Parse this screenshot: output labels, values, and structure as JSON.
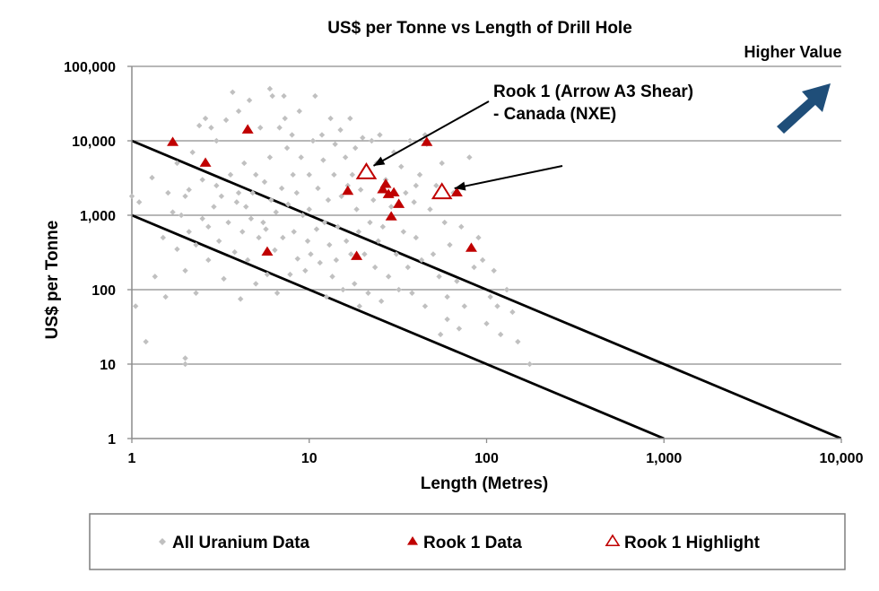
{
  "chart_data": {
    "type": "scatter",
    "title": "US$ per Tonne vs Length of Drill Hole",
    "xlabel": "Length (Metres)",
    "ylabel": "US$ per Tonne",
    "xscale": "log",
    "yscale": "log",
    "xlim": [
      1,
      10000
    ],
    "ylim": [
      1,
      100000
    ],
    "x_ticks": [
      1,
      10,
      100,
      1000,
      10000
    ],
    "x_tick_labels": [
      "1",
      "10",
      "100",
      "1,000",
      "10,000"
    ],
    "y_ticks": [
      1,
      10,
      100,
      1000,
      10000,
      100000
    ],
    "y_tick_labels": [
      "1",
      "10",
      "100",
      "1,000",
      "10,000",
      "100,000"
    ],
    "grid": "horizontal major gridlines",
    "legend_position": "bottom",
    "annotations": {
      "rook_label_line1": "Rook 1 (Arrow A3 Shear)",
      "rook_label_line2": "- Canada (NXE)",
      "higher_value": "Higher Value"
    },
    "reference_lines": [
      {
        "points": [
          [
            1,
            10000
          ],
          [
            10000,
            1
          ]
        ]
      },
      {
        "points": [
          [
            1,
            1000
          ],
          [
            1000,
            1
          ]
        ]
      }
    ],
    "series": [
      {
        "name": "All Uranium Data",
        "marker": "diamond",
        "color": "#c0c0c0",
        "points": [
          [
            1.0,
            1800
          ],
          [
            1.1,
            1500
          ],
          [
            1.05,
            60
          ],
          [
            1.2,
            20
          ],
          [
            1.3,
            3200
          ],
          [
            1.35,
            150
          ],
          [
            1.5,
            500
          ],
          [
            1.55,
            80
          ],
          [
            1.6,
            2000
          ],
          [
            1.7,
            1100
          ],
          [
            1.8,
            5000
          ],
          [
            1.8,
            350
          ],
          [
            1.9,
            1000
          ],
          [
            2.0,
            12
          ],
          [
            2.0,
            10
          ],
          [
            2.0,
            1800
          ],
          [
            2.0,
            180
          ],
          [
            2.1,
            2200
          ],
          [
            2.1,
            600
          ],
          [
            2.2,
            7000
          ],
          [
            2.3,
            400
          ],
          [
            2.3,
            90
          ],
          [
            2.4,
            16000
          ],
          [
            2.5,
            900
          ],
          [
            2.5,
            3000
          ],
          [
            2.6,
            20000
          ],
          [
            2.7,
            700
          ],
          [
            2.7,
            250
          ],
          [
            2.8,
            15000
          ],
          [
            2.9,
            1300
          ],
          [
            3.0,
            2500
          ],
          [
            3.0,
            10000
          ],
          [
            3.1,
            450
          ],
          [
            3.2,
            1800
          ],
          [
            3.3,
            140
          ],
          [
            3.4,
            19000
          ],
          [
            3.5,
            800
          ],
          [
            3.6,
            3500
          ],
          [
            3.7,
            45000
          ],
          [
            3.8,
            320
          ],
          [
            3.9,
            1500
          ],
          [
            4.0,
            2000
          ],
          [
            4.0,
            25000
          ],
          [
            4.1,
            75
          ],
          [
            4.2,
            600
          ],
          [
            4.3,
            5000
          ],
          [
            4.4,
            1300
          ],
          [
            4.5,
            250
          ],
          [
            4.6,
            35000
          ],
          [
            4.7,
            900
          ],
          [
            4.8,
            2000
          ],
          [
            5.0,
            3500
          ],
          [
            5.0,
            120
          ],
          [
            5.2,
            500
          ],
          [
            5.3,
            15000
          ],
          [
            5.5,
            800
          ],
          [
            5.6,
            2800
          ],
          [
            5.7,
            650
          ],
          [
            5.8,
            160
          ],
          [
            6.0,
            50000
          ],
          [
            6.0,
            6000
          ],
          [
            6.1,
            1600
          ],
          [
            6.2,
            40000
          ],
          [
            6.4,
            340
          ],
          [
            6.5,
            1100
          ],
          [
            6.6,
            90
          ],
          [
            6.8,
            15000
          ],
          [
            7.0,
            2300
          ],
          [
            7.1,
            500
          ],
          [
            7.2,
            40000
          ],
          [
            7.3,
            20000
          ],
          [
            7.5,
            8000
          ],
          [
            7.6,
            1400
          ],
          [
            7.8,
            160
          ],
          [
            8.0,
            12000
          ],
          [
            8.1,
            3500
          ],
          [
            8.2,
            600
          ],
          [
            8.5,
            2000
          ],
          [
            8.6,
            260
          ],
          [
            8.8,
            25000
          ],
          [
            9.0,
            6000
          ],
          [
            9.2,
            1000
          ],
          [
            9.5,
            180
          ],
          [
            9.8,
            450
          ],
          [
            10,
            3500
          ],
          [
            10,
            1200
          ],
          [
            10.2,
            300
          ],
          [
            10.5,
            10000
          ],
          [
            10.8,
            40000
          ],
          [
            11,
            650
          ],
          [
            11.2,
            2300
          ],
          [
            11.5,
            230
          ],
          [
            11.8,
            12000
          ],
          [
            12,
            5500
          ],
          [
            12.2,
            800
          ],
          [
            12.5,
            80
          ],
          [
            12.8,
            1600
          ],
          [
            13,
            400
          ],
          [
            13.2,
            20000
          ],
          [
            13.5,
            150
          ],
          [
            13.8,
            3500
          ],
          [
            14,
            9000
          ],
          [
            14.2,
            250
          ],
          [
            14.5,
            700
          ],
          [
            15,
            14000
          ],
          [
            15.2,
            1800
          ],
          [
            15.5,
            100
          ],
          [
            16,
            6000
          ],
          [
            16.2,
            450
          ],
          [
            16.5,
            2500
          ],
          [
            17,
            20000
          ],
          [
            17.2,
            300
          ],
          [
            17.5,
            3500
          ],
          [
            18,
            120
          ],
          [
            18.2,
            8000
          ],
          [
            18.5,
            1200
          ],
          [
            19,
            600
          ],
          [
            19.2,
            60
          ],
          [
            19.5,
            2200
          ],
          [
            20,
            11000
          ],
          [
            20.5,
            300
          ],
          [
            21,
            4000
          ],
          [
            21.5,
            90
          ],
          [
            22,
            800
          ],
          [
            22.5,
            10000
          ],
          [
            23,
            1600
          ],
          [
            23.5,
            200
          ],
          [
            24,
            5000
          ],
          [
            24.5,
            450
          ],
          [
            25,
            12000
          ],
          [
            25.5,
            70
          ],
          [
            26,
            700
          ],
          [
            27,
            3000
          ],
          [
            28,
            150
          ],
          [
            29,
            1300
          ],
          [
            30,
            7000
          ],
          [
            31,
            300
          ],
          [
            32,
            100
          ],
          [
            33,
            4500
          ],
          [
            34,
            600
          ],
          [
            35,
            2000
          ],
          [
            36,
            200
          ],
          [
            37,
            10000
          ],
          [
            38,
            90
          ],
          [
            39,
            1500
          ],
          [
            40,
            500
          ],
          [
            42,
            3500
          ],
          [
            43,
            250
          ],
          [
            45,
            60
          ],
          [
            46,
            9000
          ],
          [
            48,
            1200
          ],
          [
            50,
            300
          ],
          [
            52,
            2500
          ],
          [
            54,
            150
          ],
          [
            56,
            5000
          ],
          [
            58,
            800
          ],
          [
            60,
            80
          ],
          [
            62,
            400
          ],
          [
            65,
            2000
          ],
          [
            68,
            130
          ],
          [
            70,
            30
          ],
          [
            72,
            700
          ],
          [
            75,
            60
          ],
          [
            80,
            6000
          ],
          [
            85,
            200
          ],
          [
            90,
            500
          ],
          [
            95,
            250
          ],
          [
            100,
            35
          ],
          [
            105,
            80
          ],
          [
            110,
            180
          ],
          [
            115,
            60
          ],
          [
            120,
            25
          ],
          [
            130,
            100
          ],
          [
            140,
            50
          ],
          [
            150,
            20
          ],
          [
            175,
            10
          ],
          [
            40,
            2500
          ],
          [
            55,
            25
          ],
          [
            60,
            40
          ],
          [
            45,
            12000
          ]
        ]
      },
      {
        "name": "Rook 1 Data",
        "marker": "triangle",
        "color": "#c00000",
        "points": [
          [
            1.7,
            9500
          ],
          [
            2.6,
            5000
          ],
          [
            4.5,
            14000
          ],
          [
            5.8,
            320
          ],
          [
            16.5,
            2100
          ],
          [
            18.5,
            280
          ],
          [
            26,
            2200
          ],
          [
            27,
            2600
          ],
          [
            28,
            1900
          ],
          [
            29,
            950
          ],
          [
            30,
            2000
          ],
          [
            32,
            1400
          ],
          [
            46,
            9500
          ],
          [
            68,
            2000
          ],
          [
            82,
            360
          ]
        ]
      },
      {
        "name": "Rook 1 Highlight",
        "marker": "triangle-open",
        "color": "#c00000",
        "points": [
          [
            21,
            3700
          ],
          [
            56,
            2000
          ]
        ]
      }
    ]
  }
}
